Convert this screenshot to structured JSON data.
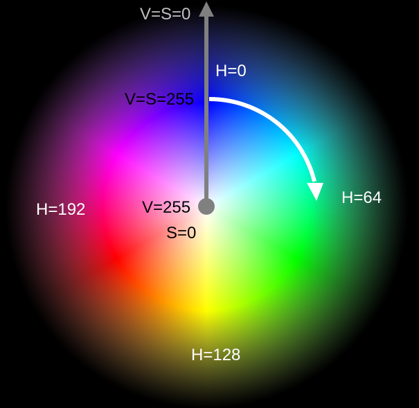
{
  "labels": {
    "outer_vs": "V=S=0",
    "ring_vs": "V=S=255",
    "hue_top": "H=0",
    "hue_right": "H=64",
    "hue_left": "H=192",
    "hue_bottom": "H=128",
    "center_v": "V=255",
    "center_s": "S=0"
  },
  "colors": {
    "background": "#000000",
    "axis_arrow": "#808080",
    "hue_arrow": "#ffffff",
    "label_light": "#ffffff",
    "label_dark": "#000000",
    "label_gray": "#c0c0c0"
  }
}
